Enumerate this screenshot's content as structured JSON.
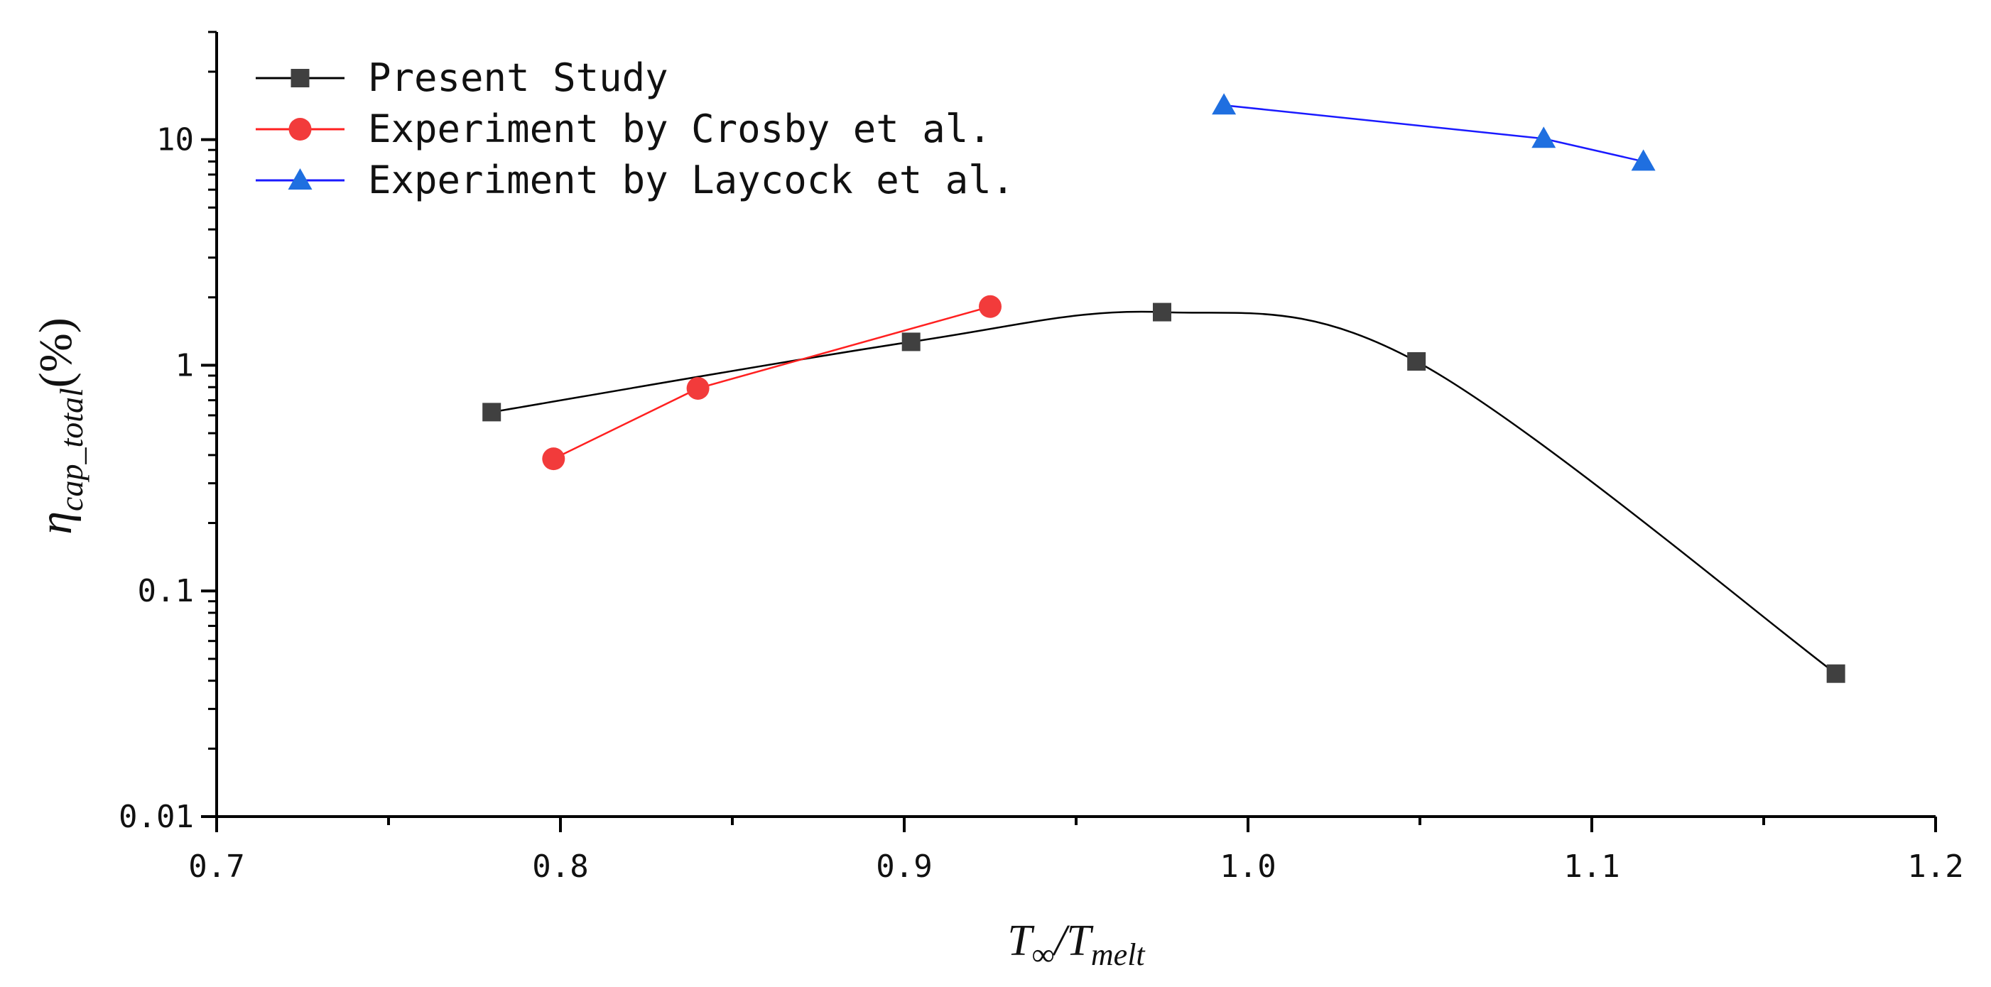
{
  "chart_data": {
    "type": "line",
    "yscale": "log",
    "xlabel": {
      "main": "T",
      "main_sub": "∞",
      "sep": "/",
      "denom": "T",
      "denom_sub": "melt"
    },
    "ylabel": {
      "main": "η",
      "sub": "cap_total",
      "suffix": "(%)"
    },
    "xlim": [
      0.7,
      1.2
    ],
    "ylim": [
      0.01,
      30
    ],
    "x_ticks": [
      0.7,
      0.8,
      0.9,
      1.0,
      1.1,
      1.2
    ],
    "x_tick_labels": [
      "0.7",
      "0.8",
      "0.9",
      "1.0",
      "1.1",
      "1.2"
    ],
    "y_ticks": [
      0.01,
      0.1,
      1,
      10
    ],
    "y_tick_labels": [
      "0.01",
      "0.1",
      "1",
      "10"
    ],
    "legend_position": "top-left",
    "series": [
      {
        "name": "Present Study",
        "color": "#000000",
        "marker_color": "#404040",
        "marker": "square",
        "smooth": true,
        "x": [
          0.78,
          0.902,
          0.975,
          1.049,
          1.171
        ],
        "y": [
          0.62,
          1.27,
          1.72,
          1.04,
          0.043
        ]
      },
      {
        "name": "Experiment by Crosby et al.",
        "color": "#ff2020",
        "marker_color": "#f23b3b",
        "marker": "circle",
        "smooth": false,
        "x": [
          0.798,
          0.84,
          0.925
        ],
        "y": [
          0.385,
          0.79,
          1.82
        ]
      },
      {
        "name": "Experiment by Laycock et al.",
        "color": "#1a1aff",
        "marker_color": "#1f6fe0",
        "marker": "triangle",
        "smooth": false,
        "x": [
          0.993,
          1.086,
          1.115
        ],
        "y": [
          14.2,
          10.1,
          8.0
        ]
      }
    ]
  }
}
